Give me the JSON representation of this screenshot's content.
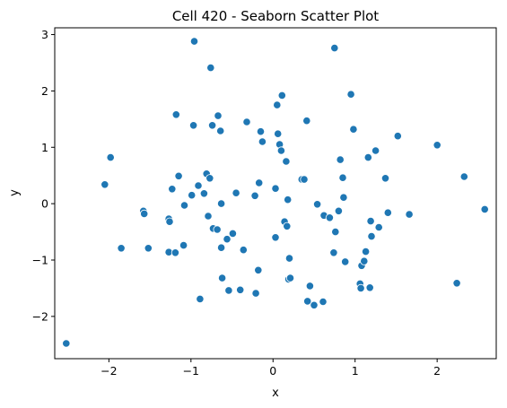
{
  "chart_data": {
    "type": "scatter",
    "title": "Cell 420 - Seaborn Scatter Plot",
    "xlabel": "x",
    "ylabel": "y",
    "xlim": [
      -2.66,
      2.72
    ],
    "ylim": [
      -2.75,
      3.12
    ],
    "xticks": [
      -2,
      -1,
      0,
      1,
      2
    ],
    "yticks": [
      -2,
      -1,
      0,
      1,
      2,
      3
    ],
    "xtick_labels": [
      "−2",
      "−1",
      "0",
      "1",
      "2"
    ],
    "ytick_labels": [
      "−2",
      "−1",
      "0",
      "1",
      "2",
      "3"
    ],
    "grid": false,
    "point_color": "#1f77b4",
    "points": [
      {
        "x": -2.52,
        "y": -2.48
      },
      {
        "x": -2.05,
        "y": 0.34
      },
      {
        "x": -1.98,
        "y": 0.82
      },
      {
        "x": -1.85,
        "y": -0.79
      },
      {
        "x": -1.58,
        "y": -0.13
      },
      {
        "x": -1.57,
        "y": -0.18
      },
      {
        "x": -1.52,
        "y": -0.79
      },
      {
        "x": -1.27,
        "y": -0.27
      },
      {
        "x": -1.26,
        "y": -0.32
      },
      {
        "x": -1.27,
        "y": -0.86
      },
      {
        "x": -1.23,
        "y": 0.26
      },
      {
        "x": -1.19,
        "y": -0.87
      },
      {
        "x": -1.18,
        "y": 1.58
      },
      {
        "x": -1.15,
        "y": 0.49
      },
      {
        "x": -1.09,
        "y": -0.74
      },
      {
        "x": -1.08,
        "y": -0.03
      },
      {
        "x": -0.99,
        "y": 0.15
      },
      {
        "x": -0.97,
        "y": 1.39
      },
      {
        "x": -0.96,
        "y": 2.88
      },
      {
        "x": -0.91,
        "y": 0.32
      },
      {
        "x": -0.89,
        "y": -1.69
      },
      {
        "x": -0.84,
        "y": 0.18
      },
      {
        "x": -0.81,
        "y": 0.53
      },
      {
        "x": -0.79,
        "y": -0.22
      },
      {
        "x": -0.77,
        "y": 0.45
      },
      {
        "x": -0.76,
        "y": 2.41
      },
      {
        "x": -0.73,
        "y": -0.44
      },
      {
        "x": -0.74,
        "y": 1.39
      },
      {
        "x": -0.68,
        "y": -0.46
      },
      {
        "x": -0.67,
        "y": 1.56
      },
      {
        "x": -0.64,
        "y": 1.29
      },
      {
        "x": -0.62,
        "y": -1.32
      },
      {
        "x": -0.63,
        "y": 0.0
      },
      {
        "x": -0.63,
        "y": -0.78
      },
      {
        "x": -0.56,
        "y": -0.63
      },
      {
        "x": -0.54,
        "y": -1.54
      },
      {
        "x": -0.49,
        "y": -0.53
      },
      {
        "x": -0.45,
        "y": 0.19
      },
      {
        "x": -0.4,
        "y": -1.53
      },
      {
        "x": -0.36,
        "y": -0.82
      },
      {
        "x": -0.32,
        "y": 1.45
      },
      {
        "x": -0.22,
        "y": 0.14
      },
      {
        "x": -0.21,
        "y": -1.59
      },
      {
        "x": -0.18,
        "y": -1.18
      },
      {
        "x": -0.17,
        "y": 0.37
      },
      {
        "x": -0.15,
        "y": 1.28
      },
      {
        "x": -0.13,
        "y": 1.1
      },
      {
        "x": 0.03,
        "y": 0.27
      },
      {
        "x": 0.03,
        "y": -0.6
      },
      {
        "x": 0.05,
        "y": 1.75
      },
      {
        "x": 0.06,
        "y": 1.24
      },
      {
        "x": 0.08,
        "y": 1.05
      },
      {
        "x": 0.1,
        "y": 0.94
      },
      {
        "x": 0.11,
        "y": 1.92
      },
      {
        "x": 0.14,
        "y": -0.32
      },
      {
        "x": 0.16,
        "y": 0.75
      },
      {
        "x": 0.18,
        "y": 0.07
      },
      {
        "x": 0.17,
        "y": -0.4
      },
      {
        "x": 0.2,
        "y": -0.97
      },
      {
        "x": 0.19,
        "y": -1.34
      },
      {
        "x": 0.21,
        "y": -1.32
      },
      {
        "x": 0.35,
        "y": 0.43
      },
      {
        "x": 0.38,
        "y": 0.43
      },
      {
        "x": 0.41,
        "y": 1.47
      },
      {
        "x": 0.42,
        "y": -1.73
      },
      {
        "x": 0.45,
        "y": -1.46
      },
      {
        "x": 0.5,
        "y": -1.8
      },
      {
        "x": 0.54,
        "y": -0.01
      },
      {
        "x": 0.61,
        "y": -1.74
      },
      {
        "x": 0.62,
        "y": -0.21
      },
      {
        "x": 0.69,
        "y": -0.25
      },
      {
        "x": 0.74,
        "y": -0.87
      },
      {
        "x": 0.75,
        "y": 2.76
      },
      {
        "x": 0.76,
        "y": -0.5
      },
      {
        "x": 0.8,
        "y": -0.13
      },
      {
        "x": 0.82,
        "y": 0.78
      },
      {
        "x": 0.85,
        "y": 0.46
      },
      {
        "x": 0.86,
        "y": 0.11
      },
      {
        "x": 0.88,
        "y": -1.03
      },
      {
        "x": 0.95,
        "y": 1.94
      },
      {
        "x": 0.98,
        "y": 1.32
      },
      {
        "x": 1.06,
        "y": -1.42
      },
      {
        "x": 1.07,
        "y": -1.5
      },
      {
        "x": 1.08,
        "y": -1.1
      },
      {
        "x": 1.11,
        "y": -1.02
      },
      {
        "x": 1.13,
        "y": -0.85
      },
      {
        "x": 1.16,
        "y": 0.82
      },
      {
        "x": 1.18,
        "y": -1.49
      },
      {
        "x": 1.19,
        "y": -0.31
      },
      {
        "x": 1.2,
        "y": -0.58
      },
      {
        "x": 1.25,
        "y": 0.94
      },
      {
        "x": 1.29,
        "y": -0.42
      },
      {
        "x": 1.37,
        "y": 0.45
      },
      {
        "x": 1.4,
        "y": -0.16
      },
      {
        "x": 1.52,
        "y": 1.2
      },
      {
        "x": 1.66,
        "y": -0.19
      },
      {
        "x": 2.0,
        "y": 1.04
      },
      {
        "x": 2.24,
        "y": -1.41
      },
      {
        "x": 2.33,
        "y": 0.48
      },
      {
        "x": 2.58,
        "y": -0.1
      }
    ]
  }
}
